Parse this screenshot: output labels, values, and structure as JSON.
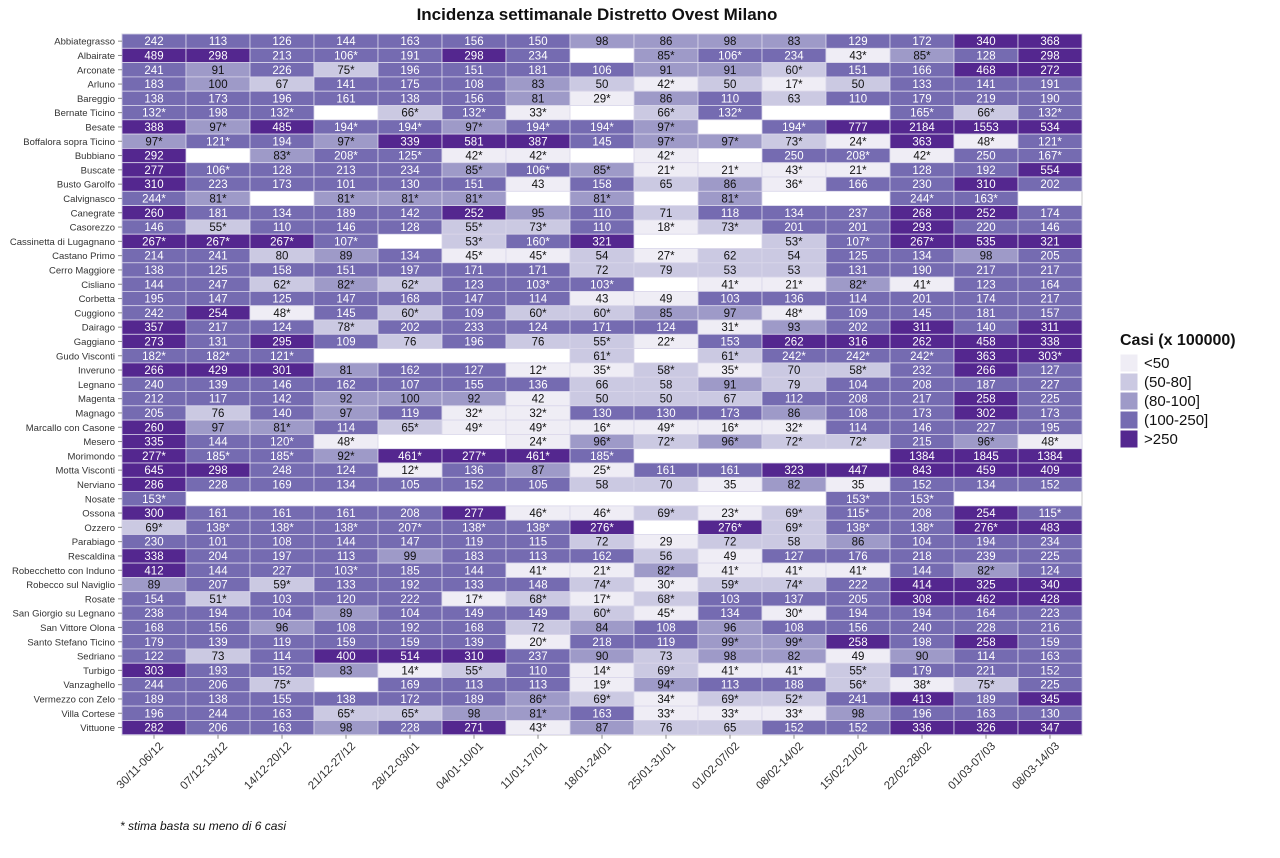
{
  "chart_data": {
    "type": "heatmap",
    "title": "Incidenza settimanale Distretto Ovest Milano",
    "footnote": "* stima basta su meno di 6 casi",
    "legend": {
      "title": "Casi (x 100000)",
      "placement": "right",
      "labels": [
        "<50",
        "(50-80]",
        "(80-100]",
        "(100-250]",
        ">250"
      ],
      "colors": [
        "#efedf5",
        "#cbc9e2",
        "#9e9ac8",
        "#756bb1",
        "#54278f"
      ]
    },
    "columns": [
      "30/11-06/12",
      "07/12-13/12",
      "14/12-20/12",
      "21/12-27/12",
      "28/12-03/01",
      "04/01-10/01",
      "11/01-17/01",
      "18/01-24/01",
      "25/01-31/01",
      "01/02-07/02",
      "08/02-14/02",
      "15/02-21/02",
      "22/02-28/02",
      "01/03-07/03",
      "08/03-14/03"
    ],
    "rows": [
      {
        "name": "Abbiategrasso",
        "values": [
          "242",
          "113",
          "126",
          "144",
          "163",
          "156",
          "150",
          "98",
          "86",
          "98",
          "83",
          "129",
          "172",
          "340",
          "368"
        ]
      },
      {
        "name": "Albairate",
        "values": [
          "489",
          "298",
          "213",
          "106*",
          "191",
          "298",
          "234",
          "",
          "85*",
          "106*",
          "234",
          "43*",
          "85*",
          "128",
          "298"
        ]
      },
      {
        "name": "Arconate",
        "values": [
          "241",
          "91",
          "226",
          "75*",
          "196",
          "151",
          "181",
          "106",
          "91",
          "91",
          "60*",
          "151",
          "166",
          "468",
          "272"
        ]
      },
      {
        "name": "Arluno",
        "values": [
          "183",
          "100",
          "67",
          "141",
          "175",
          "108",
          "83",
          "50",
          "42*",
          "50",
          "17*",
          "50",
          "133",
          "141",
          "191"
        ]
      },
      {
        "name": "Bareggio",
        "values": [
          "138",
          "173",
          "196",
          "161",
          "138",
          "156",
          "81",
          "29*",
          "86",
          "110",
          "63",
          "110",
          "179",
          "219",
          "190"
        ]
      },
      {
        "name": "Bernate Ticino",
        "values": [
          "132*",
          "198",
          "132*",
          "",
          "66*",
          "132*",
          "33*",
          "",
          "66*",
          "132*",
          "",
          "",
          "165*",
          "66*",
          "132*"
        ]
      },
      {
        "name": "Besate",
        "values": [
          "388",
          "97*",
          "485",
          "194*",
          "194*",
          "97*",
          "194*",
          "194*",
          "97*",
          "",
          "194*",
          "777",
          "2184",
          "1553",
          "534"
        ]
      },
      {
        "name": "Boffalora sopra Ticino",
        "values": [
          "97*",
          "121*",
          "194",
          "97*",
          "339",
          "581",
          "387",
          "145",
          "97*",
          "97*",
          "73*",
          "24*",
          "363",
          "48*",
          "121*"
        ]
      },
      {
        "name": "Bubbiano",
        "values": [
          "292",
          "",
          "83*",
          "208*",
          "125*",
          "42*",
          "42*",
          "",
          "42*",
          "",
          "250",
          "208*",
          "42*",
          "250",
          "167*"
        ]
      },
      {
        "name": "Buscate",
        "values": [
          "277",
          "106*",
          "128",
          "213",
          "234",
          "85*",
          "106*",
          "85*",
          "21*",
          "21*",
          "43*",
          "21*",
          "128",
          "192",
          "554"
        ]
      },
      {
        "name": "Busto Garolfo",
        "values": [
          "310",
          "223",
          "173",
          "101",
          "130",
          "151",
          "43",
          "158",
          "65",
          "86",
          "36*",
          "166",
          "230",
          "310",
          "202"
        ]
      },
      {
        "name": "Calvignasco",
        "values": [
          "244*",
          "81*",
          "",
          "81*",
          "81*",
          "81*",
          "",
          "81*",
          "",
          "81*",
          "",
          "",
          "244*",
          "163*",
          ""
        ]
      },
      {
        "name": "Canegrate",
        "values": [
          "260",
          "181",
          "134",
          "189",
          "142",
          "252",
          "95",
          "110",
          "71",
          "118",
          "134",
          "237",
          "268",
          "252",
          "174"
        ]
      },
      {
        "name": "Casorezzo",
        "values": [
          "146",
          "55*",
          "110",
          "146",
          "128",
          "55*",
          "73*",
          "110",
          "18*",
          "73*",
          "201",
          "201",
          "293",
          "220",
          "146"
        ]
      },
      {
        "name": "Cassinetta di Lugagnano",
        "values": [
          "267*",
          "267*",
          "267*",
          "107*",
          "",
          "53*",
          "160*",
          "321",
          "",
          "",
          "53*",
          "107*",
          "267*",
          "535",
          "321"
        ]
      },
      {
        "name": "Castano Primo",
        "values": [
          "214",
          "241",
          "80",
          "89",
          "134",
          "45*",
          "45*",
          "54",
          "27*",
          "62",
          "54",
          "125",
          "134",
          "98",
          "205"
        ]
      },
      {
        "name": "Cerro Maggiore",
        "values": [
          "138",
          "125",
          "158",
          "151",
          "197",
          "171",
          "171",
          "72",
          "79",
          "53",
          "53",
          "131",
          "190",
          "217",
          "217"
        ]
      },
      {
        "name": "Cisliano",
        "values": [
          "144",
          "247",
          "62*",
          "82*",
          "62*",
          "123",
          "103*",
          "103*",
          "",
          "41*",
          "21*",
          "82*",
          "41*",
          "123",
          "164"
        ]
      },
      {
        "name": "Corbetta",
        "values": [
          "195",
          "147",
          "125",
          "147",
          "168",
          "147",
          "114",
          "43",
          "49",
          "103",
          "136",
          "114",
          "201",
          "174",
          "217"
        ]
      },
      {
        "name": "Cuggiono",
        "values": [
          "242",
          "254",
          "48*",
          "145",
          "60*",
          "109",
          "60*",
          "60*",
          "85",
          "97",
          "48*",
          "109",
          "145",
          "181",
          "157"
        ]
      },
      {
        "name": "Dairago",
        "values": [
          "357",
          "217",
          "124",
          "78*",
          "202",
          "233",
          "124",
          "171",
          "124",
          "31*",
          "93",
          "202",
          "311",
          "140",
          "311"
        ]
      },
      {
        "name": "Gaggiano",
        "values": [
          "273",
          "131",
          "295",
          "109",
          "76",
          "196",
          "76",
          "55*",
          "22*",
          "153",
          "262",
          "316",
          "262",
          "458",
          "338"
        ]
      },
      {
        "name": "Gudo Visconti",
        "values": [
          "182*",
          "182*",
          "121*",
          "",
          "",
          "",
          "",
          "61*",
          "",
          "61*",
          "242*",
          "242*",
          "242*",
          "363",
          "303*"
        ]
      },
      {
        "name": "Inveruno",
        "values": [
          "266",
          "429",
          "301",
          "81",
          "162",
          "127",
          "12*",
          "35*",
          "58*",
          "35*",
          "70",
          "58*",
          "232",
          "266",
          "127"
        ]
      },
      {
        "name": "Legnano",
        "values": [
          "240",
          "139",
          "146",
          "162",
          "107",
          "155",
          "136",
          "66",
          "58",
          "91",
          "79",
          "104",
          "208",
          "187",
          "227"
        ]
      },
      {
        "name": "Magenta",
        "values": [
          "212",
          "117",
          "142",
          "92",
          "100",
          "92",
          "42",
          "50",
          "50",
          "67",
          "112",
          "208",
          "217",
          "258",
          "225"
        ]
      },
      {
        "name": "Magnago",
        "values": [
          "205",
          "76",
          "140",
          "97",
          "119",
          "32*",
          "32*",
          "130",
          "130",
          "173",
          "86",
          "108",
          "173",
          "302",
          "173"
        ]
      },
      {
        "name": "Marcallo con Casone",
        "values": [
          "260",
          "97",
          "81*",
          "114",
          "65*",
          "49*",
          "49*",
          "16*",
          "49*",
          "16*",
          "32*",
          "114",
          "146",
          "227",
          "195"
        ]
      },
      {
        "name": "Mesero",
        "values": [
          "335",
          "144",
          "120*",
          "48*",
          "",
          "",
          "24*",
          "96*",
          "72*",
          "96*",
          "72*",
          "72*",
          "215",
          "96*",
          "48*"
        ]
      },
      {
        "name": "Morimondo",
        "values": [
          "277*",
          "185*",
          "185*",
          "92*",
          "461*",
          "277*",
          "461*",
          "185*",
          "",
          "",
          "",
          "",
          "1384",
          "1845",
          "1384"
        ]
      },
      {
        "name": "Motta Visconti",
        "values": [
          "645",
          "298",
          "248",
          "124",
          "12*",
          "136",
          "87",
          "25*",
          "161",
          "161",
          "323",
          "447",
          "843",
          "459",
          "409"
        ]
      },
      {
        "name": "Nerviano",
        "values": [
          "286",
          "228",
          "169",
          "134",
          "105",
          "152",
          "105",
          "58",
          "70",
          "35",
          "82",
          "35",
          "152",
          "134",
          "152"
        ]
      },
      {
        "name": "Nosate",
        "values": [
          "153*",
          "",
          "",
          "",
          "",
          "",
          "",
          "",
          "",
          "",
          "",
          "153*",
          "153*",
          "",
          ""
        ]
      },
      {
        "name": "Ossona",
        "values": [
          "300",
          "161",
          "161",
          "161",
          "208",
          "277",
          "46*",
          "46*",
          "69*",
          "23*",
          "69*",
          "115*",
          "208",
          "254",
          "115*"
        ]
      },
      {
        "name": "Ozzero",
        "values": [
          "69*",
          "138*",
          "138*",
          "138*",
          "207*",
          "138*",
          "138*",
          "276*",
          "",
          "276*",
          "69*",
          "138*",
          "138*",
          "276*",
          "483"
        ]
      },
      {
        "name": "Parabiago",
        "values": [
          "230",
          "101",
          "108",
          "144",
          "147",
          "119",
          "115",
          "72",
          "29",
          "72",
          "58",
          "86",
          "104",
          "194",
          "234"
        ]
      },
      {
        "name": "Rescaldina",
        "values": [
          "338",
          "204",
          "197",
          "113",
          "99",
          "183",
          "113",
          "162",
          "56",
          "49",
          "127",
          "176",
          "218",
          "239",
          "225"
        ]
      },
      {
        "name": "Robecchetto con Induno",
        "values": [
          "412",
          "144",
          "227",
          "103*",
          "185",
          "144",
          "41*",
          "21*",
          "82*",
          "41*",
          "41*",
          "41*",
          "144",
          "82*",
          "124"
        ]
      },
      {
        "name": "Robecco sul Naviglio",
        "values": [
          "89",
          "207",
          "59*",
          "133",
          "192",
          "133",
          "148",
          "74*",
          "30*",
          "59*",
          "74*",
          "222",
          "414",
          "325",
          "340"
        ]
      },
      {
        "name": "Rosate",
        "values": [
          "154",
          "51*",
          "103",
          "120",
          "222",
          "17*",
          "68*",
          "17*",
          "68*",
          "103",
          "137",
          "205",
          "308",
          "462",
          "428"
        ]
      },
      {
        "name": "San Giorgio su Legnano",
        "values": [
          "238",
          "194",
          "104",
          "89",
          "104",
          "149",
          "149",
          "60*",
          "45*",
          "134",
          "30*",
          "194",
          "194",
          "164",
          "223"
        ]
      },
      {
        "name": "San Vittore Olona",
        "values": [
          "168",
          "156",
          "96",
          "108",
          "192",
          "168",
          "72",
          "84",
          "108",
          "96",
          "108",
          "156",
          "240",
          "228",
          "216"
        ]
      },
      {
        "name": "Santo Stefano Ticino",
        "values": [
          "179",
          "139",
          "119",
          "159",
          "159",
          "139",
          "20*",
          "218",
          "119",
          "99*",
          "99*",
          "258",
          "198",
          "258",
          "159"
        ]
      },
      {
        "name": "Sedriano",
        "values": [
          "122",
          "73",
          "114",
          "400",
          "514",
          "310",
          "237",
          "90",
          "73",
          "98",
          "82",
          "49",
          "90",
          "114",
          "163"
        ]
      },
      {
        "name": "Turbigo",
        "values": [
          "303",
          "193",
          "152",
          "83",
          "14*",
          "55*",
          "110",
          "14*",
          "69*",
          "41*",
          "41*",
          "55*",
          "179",
          "221",
          "152"
        ]
      },
      {
        "name": "Vanzaghello",
        "values": [
          "244",
          "206",
          "75*",
          "",
          "169",
          "113",
          "113",
          "19*",
          "94*",
          "113",
          "188",
          "56*",
          "38*",
          "75*",
          "225"
        ]
      },
      {
        "name": "Vermezzo con Zelo",
        "values": [
          "189",
          "138",
          "155",
          "138",
          "172",
          "189",
          "86*",
          "69*",
          "34*",
          "69*",
          "52*",
          "241",
          "413",
          "189",
          "345"
        ]
      },
      {
        "name": "Villa Cortese",
        "values": [
          "196",
          "244",
          "163",
          "65*",
          "65*",
          "98",
          "81*",
          "163",
          "33*",
          "33*",
          "33*",
          "98",
          "196",
          "163",
          "130"
        ]
      },
      {
        "name": "Vittuone",
        "values": [
          "282",
          "206",
          "163",
          "98",
          "228",
          "271",
          "43*",
          "87",
          "76",
          "65",
          "152",
          "152",
          "336",
          "326",
          "347"
        ]
      }
    ]
  }
}
